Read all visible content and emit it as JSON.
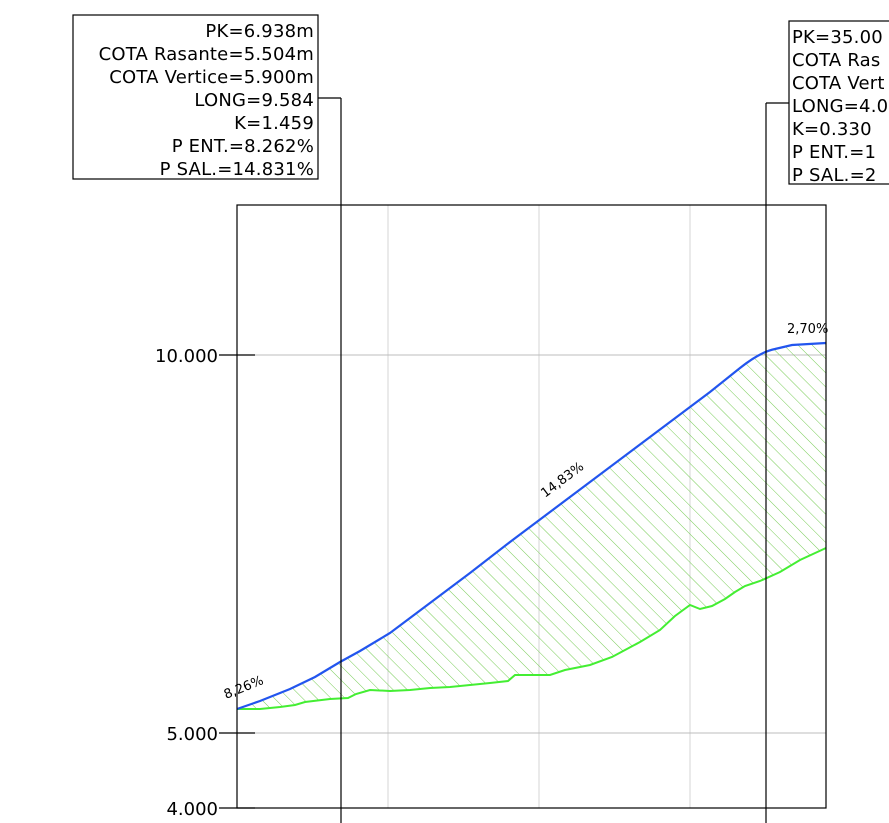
{
  "annotations": {
    "left": {
      "pk": "PK=6.938m",
      "cota_rasante": "COTA Rasante=5.504m",
      "cota_vertice": "COTA Vertice=5.900m",
      "long": "LONG=9.584",
      "k": "K=1.459",
      "p_ent": "P ENT.=8.262%",
      "p_sal": "P SAL.=14.831%"
    },
    "right": {
      "pk": "PK=35.00",
      "cota_rasante": "COTA Ras",
      "cota_vertice": "COTA Vert",
      "long": "LONG=4.0",
      "k": "K=0.330",
      "p_ent": "P ENT.=1",
      "p_sal": "P SAL.=2"
    }
  },
  "axis": {
    "labels": [
      "10.000",
      "5.000",
      "4.000"
    ],
    "values": [
      10.0,
      5.0,
      4.0
    ]
  },
  "slopes": {
    "start": "8,26%",
    "middle": "14,83%",
    "end": "2,70%"
  },
  "colors": {
    "rasante": "#2255ee",
    "terrain": "#44ee33",
    "hatch": "#77cc55",
    "grid": "#cfcfcf",
    "frame": "#000000"
  }
}
